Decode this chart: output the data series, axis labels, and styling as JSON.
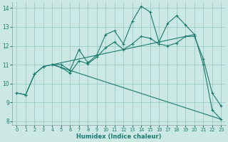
{
  "xlabel": "Humidex (Indice chaleur)",
  "background_color": "#cce8e4",
  "grid_color": "#99cccc",
  "line_color": "#1a7a6e",
  "xlim": [
    -0.5,
    23.5
  ],
  "ylim": [
    7.8,
    14.3
  ],
  "xticks": [
    0,
    1,
    2,
    3,
    4,
    5,
    6,
    7,
    8,
    9,
    10,
    11,
    12,
    13,
    14,
    15,
    16,
    17,
    18,
    19,
    20,
    21,
    22,
    23
  ],
  "yticks": [
    8,
    9,
    10,
    11,
    12,
    13,
    14
  ],
  "series_zigzag": {
    "x": [
      0,
      1,
      2,
      3,
      4,
      5,
      6,
      7,
      8,
      9,
      10,
      11,
      12,
      13,
      14,
      15,
      16,
      17,
      18,
      19,
      20,
      21,
      22,
      23
    ],
    "y": [
      9.5,
      9.4,
      10.5,
      10.9,
      11.0,
      11.0,
      10.7,
      11.8,
      11.1,
      11.5,
      12.6,
      12.8,
      12.1,
      13.3,
      14.1,
      13.8,
      12.2,
      13.2,
      13.6,
      13.1,
      12.6,
      11.0,
      8.6,
      8.1
    ]
  },
  "series_smooth": {
    "x": [
      0,
      1,
      2,
      3,
      4,
      5,
      6,
      7,
      8,
      9,
      10,
      11,
      12,
      13,
      14,
      15,
      16,
      17,
      18,
      19,
      20,
      21,
      22,
      23
    ],
    "y": [
      9.5,
      9.4,
      10.5,
      10.9,
      11.0,
      10.85,
      10.55,
      11.2,
      11.05,
      11.4,
      11.9,
      12.2,
      11.8,
      12.1,
      12.5,
      12.4,
      12.1,
      12.0,
      12.15,
      12.5,
      12.5,
      11.3,
      9.5,
      8.8
    ]
  },
  "series_diag_down": {
    "x": [
      4,
      23
    ],
    "y": [
      11.0,
      8.1
    ]
  },
  "series_diag_up": {
    "x": [
      4,
      20
    ],
    "y": [
      11.0,
      12.6
    ]
  }
}
